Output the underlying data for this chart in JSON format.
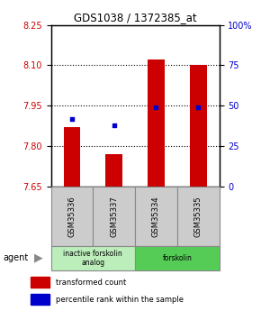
{
  "title": "GDS1038 / 1372385_at",
  "samples": [
    "GSM35336",
    "GSM35337",
    "GSM35334",
    "GSM35335"
  ],
  "bar_values": [
    7.87,
    7.77,
    8.12,
    8.1
  ],
  "percentile_values": [
    42,
    38,
    49,
    49
  ],
  "ylim_left": [
    7.65,
    8.25
  ],
  "ylim_right": [
    0,
    100
  ],
  "yticks_left": [
    7.65,
    7.8,
    7.95,
    8.1,
    8.25
  ],
  "yticks_right": [
    0,
    25,
    50,
    75,
    100
  ],
  "ytick_labels_right": [
    "0",
    "25",
    "50",
    "75",
    "100%"
  ],
  "bar_color": "#cc0000",
  "dot_color": "#0000cc",
  "bar_bottom": 7.65,
  "grid_values": [
    7.8,
    7.95,
    8.1
  ],
  "agent_groups": [
    {
      "label": "inactive forskolin\nanalog",
      "color": "#bbeebb",
      "span": [
        0,
        1
      ]
    },
    {
      "label": "forskolin",
      "color": "#55cc55",
      "span": [
        2,
        3
      ]
    }
  ],
  "legend_bar_label": "transformed count",
  "legend_dot_label": "percentile rank within the sample",
  "left_axis_color": "#cc0000",
  "right_axis_color": "#0000cc",
  "sample_box_color": "#cccccc",
  "sample_box_edge": "#888888"
}
